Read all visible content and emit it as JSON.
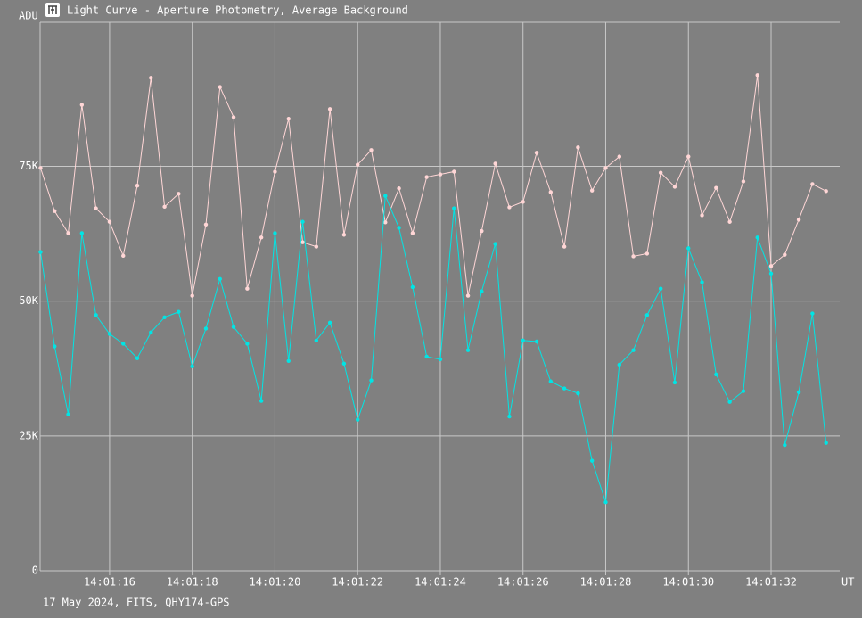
{
  "chart_data": {
    "type": "line",
    "title": "Light Curve - Aperture Photometry, Average Background",
    "y_label": "ADU",
    "x_label": "UT",
    "footer": "17 May 2024, FITS, QHY174-GPS",
    "x": [
      14.33,
      14.67,
      15,
      15.33,
      15.67,
      16,
      16.33,
      16.67,
      17,
      17.33,
      17.67,
      18,
      18.33,
      18.67,
      19,
      19.33,
      19.67,
      20,
      20.33,
      20.67,
      21,
      21.33,
      21.67,
      22,
      22.33,
      22.67,
      23,
      23.33,
      23.67,
      24,
      24.33,
      24.67,
      25,
      25.33,
      25.67,
      26,
      26.33,
      26.67,
      27,
      27.33,
      27.67,
      28,
      28.33,
      28.67,
      29,
      29.33,
      29.67,
      30,
      30.33,
      30.67,
      31,
      31.33,
      31.67,
      32,
      32.33,
      32.67,
      33,
      33.33
    ],
    "series": [
      {
        "color": "#ffd6d6",
        "values": [
          74700,
          66700,
          62600,
          86400,
          67200,
          64700,
          58400,
          71400,
          91400,
          67500,
          69900,
          51000,
          64200,
          89700,
          84100,
          52300,
          61800,
          74000,
          83800,
          60900,
          60100,
          85600,
          62300,
          75300,
          78000,
          64600,
          70900,
          62600,
          73000,
          73500,
          74000,
          51000,
          63000,
          75500,
          67400,
          68400,
          77500,
          70200,
          60100,
          78500,
          70500,
          74700,
          76800,
          58300,
          58800,
          73800,
          71200,
          76800,
          65900,
          71000,
          64700,
          72200,
          91900,
          56500,
          58600,
          65100,
          71700,
          70400
        ]
      },
      {
        "color": "#00e5e5",
        "values": [
          59100,
          41600,
          29000,
          62600,
          47400,
          43900,
          42100,
          39400,
          44200,
          47000,
          48000,
          37900,
          44900,
          54100,
          45200,
          42100,
          31500,
          62600,
          38900,
          64700,
          42700,
          46000,
          38400,
          28000,
          35300,
          69500,
          63600,
          52600,
          39700,
          39200,
          67200,
          40900,
          51800,
          60600,
          28600,
          42700,
          42500,
          35100,
          33800,
          32900,
          20400,
          12700,
          38200,
          40900,
          47400,
          52300,
          34900,
          59800,
          53500,
          36400,
          31300,
          33300,
          61800,
          55100,
          23300,
          33100,
          47700,
          23700
        ]
      }
    ],
    "xlim": [
      14.32,
      33.66
    ],
    "xticks": [
      {
        "value": 16,
        "label": "14:01:16"
      },
      {
        "value": 18,
        "label": "14:01:18"
      },
      {
        "value": 20,
        "label": "14:01:20"
      },
      {
        "value": 22,
        "label": "14:01:22"
      },
      {
        "value": 24,
        "label": "14:01:24"
      },
      {
        "value": 26,
        "label": "14:01:26"
      },
      {
        "value": 28,
        "label": "14:01:28"
      },
      {
        "value": 30,
        "label": "14:01:30"
      },
      {
        "value": 32,
        "label": "14:01:32"
      }
    ],
    "ylim": [
      0,
      101700
    ],
    "yticks": [
      0,
      {
        "value": 25000,
        "label": "25K"
      },
      {
        "value": 50000,
        "label": "50K"
      },
      {
        "value": 75000,
        "label": "75K"
      }
    ],
    "grid": true
  }
}
